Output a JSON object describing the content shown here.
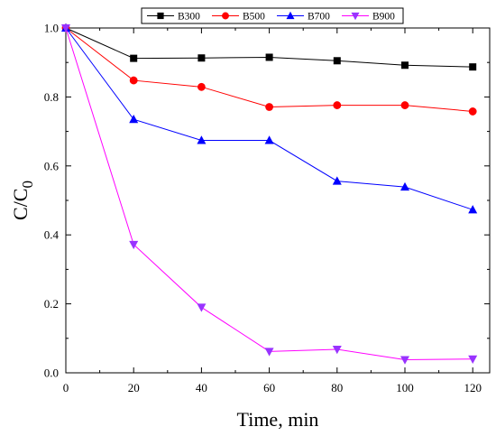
{
  "chart_data": {
    "type": "line",
    "xlabel": "Time, min",
    "ylabel": {
      "main": "C/C",
      "sub": "0"
    },
    "xlim": [
      0,
      125
    ],
    "ylim": [
      0,
      1.0
    ],
    "xticks": [
      0,
      20,
      40,
      60,
      80,
      100,
      120
    ],
    "yticks": [
      0.0,
      0.2,
      0.4,
      0.6,
      0.8,
      1.0
    ],
    "x": [
      0,
      20,
      40,
      60,
      80,
      100,
      120
    ],
    "grid": false,
    "legend_position": "top",
    "series": [
      {
        "name": "B300",
        "color": "#000000",
        "marker": "square",
        "values": [
          1.0,
          0.912,
          0.913,
          0.915,
          0.905,
          0.892,
          0.887
        ]
      },
      {
        "name": "B500",
        "color": "#ff0000",
        "marker": "circle",
        "values": [
          1.0,
          0.848,
          0.829,
          0.771,
          0.776,
          0.776,
          0.758
        ]
      },
      {
        "name": "B700",
        "color": "#0000ff",
        "marker": "triangle-up",
        "values": [
          1.0,
          0.735,
          0.674,
          0.674,
          0.556,
          0.539,
          0.473
        ]
      },
      {
        "name": "B900",
        "color": "#ff00ff",
        "marker_color": "#9933ff",
        "marker": "triangle-down",
        "values": [
          1.0,
          0.372,
          0.19,
          0.062,
          0.068,
          0.038,
          0.04
        ]
      }
    ]
  }
}
